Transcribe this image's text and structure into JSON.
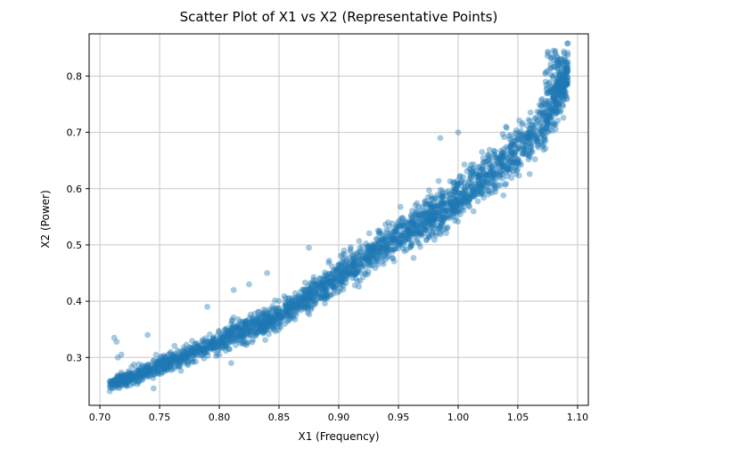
{
  "chart_data": {
    "type": "scatter",
    "title": "Scatter Plot of X1 vs X2 (Representative Points)",
    "xlabel": "X1 (Frequency)",
    "ylabel": "X2 (Power)",
    "xlim": [
      0.691,
      1.109
    ],
    "ylim": [
      0.215,
      0.875
    ],
    "xticks": [
      0.7,
      0.75,
      0.8,
      0.85,
      0.9,
      0.95,
      1.0,
      1.05,
      1.1
    ],
    "xtick_labels": [
      "0.70",
      "0.75",
      "0.80",
      "0.85",
      "0.90",
      "0.95",
      "1.00",
      "1.05",
      "1.10"
    ],
    "yticks": [
      0.3,
      0.4,
      0.5,
      0.6,
      0.7,
      0.8
    ],
    "ytick_labels": [
      "0.3",
      "0.4",
      "0.5",
      "0.6",
      "0.7",
      "0.8"
    ],
    "grid": true,
    "grid_color": "#c8c8c8",
    "spine_color": "#000000",
    "marker_color": "#1f77b4",
    "marker_alpha": 0.4,
    "n_points": 2600,
    "n_tip_points": 150,
    "n_left_cluster_points": 90,
    "trend": [
      [
        0.71,
        0.253,
        0.012
      ],
      [
        0.73,
        0.268,
        0.014
      ],
      [
        0.75,
        0.285,
        0.016
      ],
      [
        0.78,
        0.31,
        0.019
      ],
      [
        0.8,
        0.328,
        0.022
      ],
      [
        0.83,
        0.356,
        0.025
      ],
      [
        0.85,
        0.375,
        0.027
      ],
      [
        0.88,
        0.415,
        0.03
      ],
      [
        0.9,
        0.445,
        0.032
      ],
      [
        0.93,
        0.487,
        0.034
      ],
      [
        0.95,
        0.515,
        0.036
      ],
      [
        0.98,
        0.553,
        0.038
      ],
      [
        1.0,
        0.582,
        0.04
      ],
      [
        1.03,
        0.632,
        0.043
      ],
      [
        1.05,
        0.668,
        0.045
      ],
      [
        1.07,
        0.715,
        0.048
      ],
      [
        1.08,
        0.745,
        0.048
      ],
      [
        1.09,
        0.795,
        0.048
      ]
    ],
    "outliers": [
      [
        0.712,
        0.335
      ],
      [
        0.714,
        0.328
      ],
      [
        0.715,
        0.3
      ],
      [
        0.718,
        0.305
      ],
      [
        0.74,
        0.34
      ],
      [
        0.745,
        0.245
      ],
      [
        0.755,
        0.3
      ],
      [
        0.76,
        0.295
      ],
      [
        0.775,
        0.31
      ],
      [
        0.79,
        0.39
      ],
      [
        0.8,
        0.305
      ],
      [
        0.805,
        0.35
      ],
      [
        0.81,
        0.29
      ],
      [
        0.812,
        0.42
      ],
      [
        0.825,
        0.43
      ],
      [
        0.83,
        0.345
      ],
      [
        0.84,
        0.45
      ],
      [
        0.85,
        0.355
      ],
      [
        0.855,
        0.36
      ],
      [
        0.875,
        0.495
      ],
      [
        0.89,
        0.41
      ],
      [
        0.935,
        0.48
      ],
      [
        0.97,
        0.56
      ],
      [
        0.985,
        0.69
      ],
      [
        1.0,
        0.7
      ],
      [
        1.02,
        0.665
      ],
      [
        1.04,
        0.71
      ],
      [
        1.055,
        0.695
      ],
      [
        1.06,
        0.7
      ],
      [
        1.075,
        0.7
      ]
    ]
  }
}
